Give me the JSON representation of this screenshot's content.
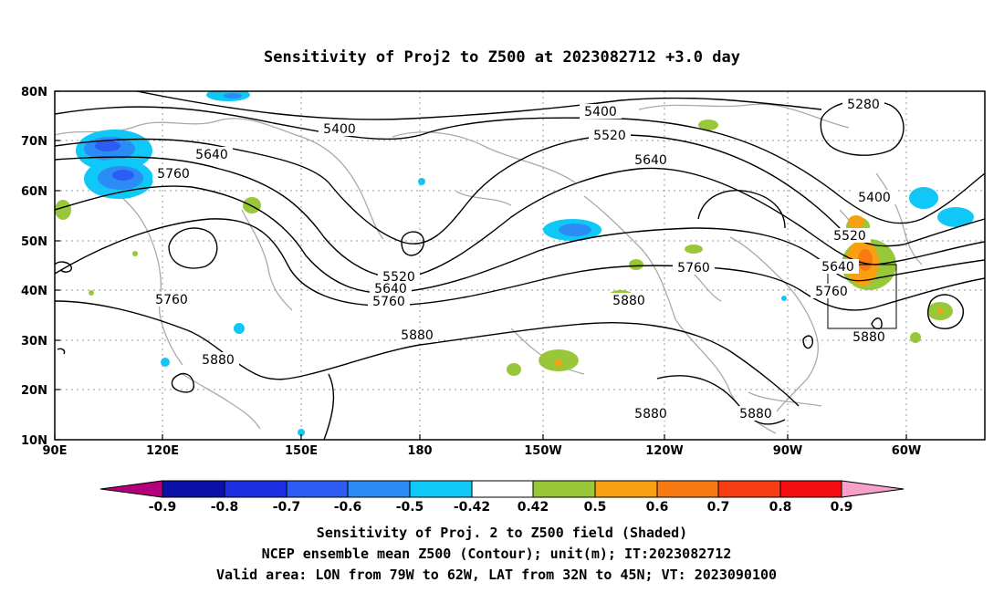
{
  "title": "Sensitivity of Proj2 to Z500 at 2023082712 +3.0 day",
  "map": {
    "lon_labels": [
      "90E",
      "120E",
      "150E",
      "180",
      "150W",
      "120W",
      "90W",
      "60W"
    ],
    "lat_labels": [
      "80N",
      "70N",
      "60N",
      "50N",
      "40N",
      "30N",
      "20N",
      "10N"
    ],
    "contour_labels": [
      "5280",
      "5400",
      "5400",
      "5400",
      "5520",
      "5520",
      "5520",
      "5640",
      "5640",
      "5640",
      "5640",
      "5760",
      "5760",
      "5760",
      "5760",
      "5760",
      "5880",
      "5880",
      "5880",
      "5880",
      "5880",
      "5880"
    ],
    "valid_area_box": {
      "lon_from": -79,
      "lon_to": -62,
      "lat_from": 32,
      "lat_to": 45
    }
  },
  "colorbar": {
    "ticks": [
      "-0.9",
      "-0.8",
      "-0.7",
      "-0.6",
      "-0.5",
      "-0.42",
      "0.42",
      "0.5",
      "0.6",
      "0.7",
      "0.8",
      "0.9"
    ],
    "colors": [
      "#b4007b",
      "#0a10a8",
      "#1c2fe0",
      "#2d5cf5",
      "#2b8cf6",
      "#10c8f8",
      "#ffffff",
      "#98c83a",
      "#f8a011",
      "#f87a11",
      "#f63e12",
      "#f40d10",
      "#f7a0c8"
    ]
  },
  "captions": {
    "line1": "Sensitivity of Proj. 2 to Z500 field (Shaded)",
    "line2": "NCEP ensemble mean Z500 (Contour); unit(m); IT:2023082712",
    "line3": "Valid area: LON from 79W to 62W, LAT from 32N to 45N; VT: 2023090100"
  }
}
